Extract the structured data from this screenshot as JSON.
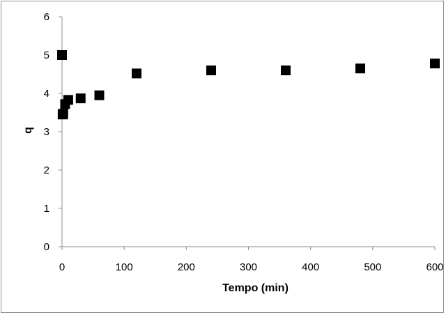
{
  "chart_data": {
    "type": "scatter",
    "title": "",
    "xlabel": "Tempo (min)",
    "ylabel": "q",
    "xlim": [
      0,
      600
    ],
    "ylim": [
      0,
      6
    ],
    "xticks": [
      0,
      100,
      200,
      300,
      400,
      500,
      600
    ],
    "yticks": [
      0,
      1,
      2,
      3,
      4,
      5,
      6
    ],
    "grid": false,
    "legend": "none",
    "marker": "square",
    "marker_color": "#000000",
    "series": [
      {
        "x": [
          0,
          1,
          2,
          5,
          10,
          30,
          60,
          120,
          240,
          360,
          480,
          600
        ],
        "y": [
          5.0,
          3.45,
          3.47,
          3.72,
          3.83,
          3.87,
          3.95,
          4.52,
          4.6,
          4.6,
          4.65,
          4.78
        ]
      }
    ]
  }
}
